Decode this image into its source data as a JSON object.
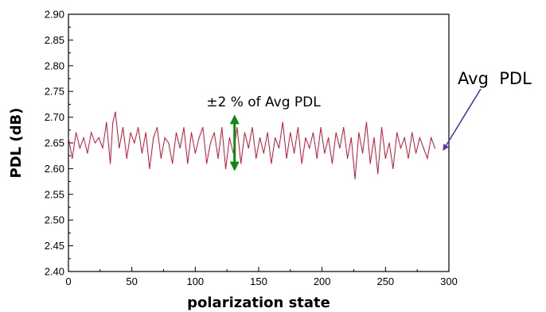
{
  "chart_data": {
    "type": "line",
    "title": "",
    "xlabel": "polarization state",
    "ylabel": "PDL (dB)",
    "xlim": [
      0,
      300
    ],
    "ylim": [
      2.4,
      2.9
    ],
    "x_ticks": [
      0,
      50,
      100,
      150,
      200,
      250,
      300
    ],
    "y_ticks": [
      "2.40",
      "2.45",
      "2.50",
      "2.55",
      "2.60",
      "2.65",
      "2.70",
      "2.75",
      "2.80",
      "2.85",
      "2.90"
    ],
    "grid": false,
    "legend": "none",
    "series": [
      {
        "color": "#cc1133",
        "x": [
          0,
          3,
          6,
          9,
          12,
          15,
          18,
          21,
          24,
          27,
          30,
          33,
          35,
          37,
          40,
          43,
          46,
          49,
          52,
          55,
          58,
          61,
          64,
          67,
          70,
          73,
          76,
          79,
          82,
          85,
          88,
          91,
          94,
          97,
          100,
          103,
          106,
          109,
          112,
          115,
          118,
          121,
          124,
          127,
          130,
          133,
          136,
          139,
          142,
          145,
          148,
          151,
          154,
          157,
          160,
          163,
          166,
          169,
          172,
          175,
          178,
          181,
          184,
          187,
          190,
          193,
          196,
          199,
          202,
          205,
          208,
          211,
          214,
          217,
          220,
          223,
          226,
          229,
          232,
          235,
          238,
          241,
          244,
          247,
          250,
          253,
          256,
          259,
          262,
          265,
          268,
          271,
          274,
          277,
          280,
          283,
          286,
          289
        ],
        "y": [
          2.66,
          2.62,
          2.67,
          2.64,
          2.66,
          2.63,
          2.67,
          2.65,
          2.66,
          2.64,
          2.69,
          2.61,
          2.69,
          2.71,
          2.64,
          2.68,
          2.62,
          2.67,
          2.65,
          2.68,
          2.63,
          2.67,
          2.6,
          2.66,
          2.68,
          2.62,
          2.66,
          2.65,
          2.61,
          2.67,
          2.64,
          2.68,
          2.61,
          2.67,
          2.63,
          2.66,
          2.68,
          2.61,
          2.65,
          2.67,
          2.62,
          2.68,
          2.6,
          2.66,
          2.63,
          2.68,
          2.61,
          2.67,
          2.64,
          2.68,
          2.62,
          2.66,
          2.63,
          2.67,
          2.61,
          2.66,
          2.64,
          2.69,
          2.62,
          2.67,
          2.63,
          2.68,
          2.61,
          2.66,
          2.64,
          2.67,
          2.62,
          2.68,
          2.63,
          2.66,
          2.61,
          2.67,
          2.64,
          2.68,
          2.62,
          2.66,
          2.58,
          2.67,
          2.63,
          2.69,
          2.61,
          2.66,
          2.59,
          2.68,
          2.62,
          2.65,
          2.6,
          2.67,
          2.64,
          2.66,
          2.62,
          2.67,
          2.63,
          2.66,
          2.64,
          2.62,
          2.66,
          2.64
        ]
      }
    ],
    "annotations": [
      {
        "text": "±2 % of Avg PDL",
        "type": "double-arrow",
        "color": "#118811",
        "x": 131,
        "y_from": 2.595,
        "y_to": 2.705
      },
      {
        "text": "Avg  PDL",
        "type": "arrow",
        "color": "#5533aa",
        "target_x": 293,
        "target_y": 2.645
      }
    ]
  }
}
